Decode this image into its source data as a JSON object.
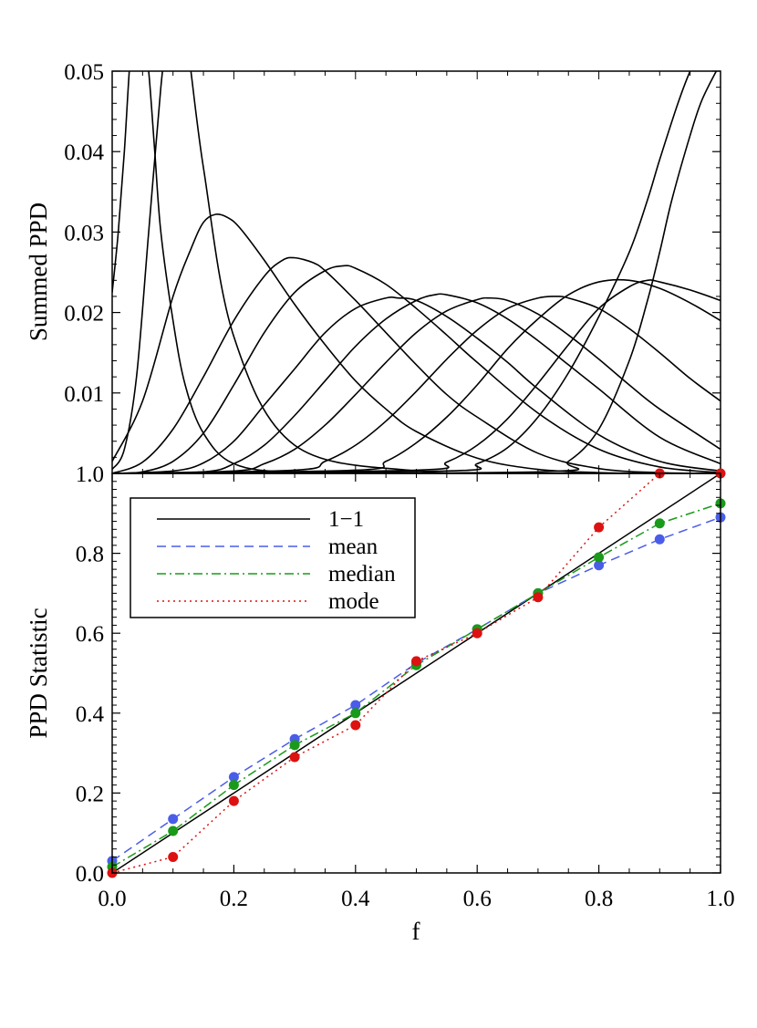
{
  "chart_data": [
    {
      "type": "line",
      "ylabel": "Summed PPD",
      "xlim": [
        0.0,
        1.0
      ],
      "ylim": [
        0.0,
        0.05
      ],
      "yticks": [
        0.01,
        0.02,
        0.03,
        0.04,
        0.05
      ],
      "ytick_labels": [
        "0.01",
        "0.02",
        "0.03",
        "0.04",
        "0.05"
      ],
      "series": [
        {
          "x": [
            0,
            0.01,
            0.02,
            0.03,
            0.04,
            0.05,
            0.06,
            0.07,
            0.08,
            0.1,
            0.12,
            0.15,
            0.2,
            0.3,
            0.5,
            0.7,
            1.0
          ],
          "values": [
            0.0225,
            0.03,
            0.04,
            0.052,
            0.058,
            0.056,
            0.05,
            0.04,
            0.03,
            0.019,
            0.011,
            0.005,
            0.0012,
            0.0001,
            0,
            0,
            0
          ]
        },
        {
          "x": [
            0,
            0.02,
            0.04,
            0.06,
            0.08,
            0.09,
            0.1,
            0.12,
            0.15,
            0.2,
            0.3,
            0.5,
            0.7,
            1.0
          ],
          "values": [
            0.0005,
            0.003,
            0.012,
            0.03,
            0.048,
            0.054,
            0.057,
            0.055,
            0.038,
            0.017,
            0.0035,
            0.0003,
            2e-05,
            0
          ]
        },
        {
          "x": [
            0,
            0.05,
            0.1,
            0.13,
            0.15,
            0.17,
            0.19,
            0.21,
            0.25,
            0.3,
            0.35,
            0.4,
            0.45,
            0.5,
            0.6,
            0.7,
            0.8,
            0.9,
            1.0
          ],
          "values": [
            0.0015,
            0.009,
            0.022,
            0.028,
            0.0312,
            0.0322,
            0.0318,
            0.0305,
            0.0265,
            0.021,
            0.016,
            0.0115,
            0.008,
            0.0052,
            0.0019,
            0.0005,
            0.0001,
            0,
            0
          ]
        },
        {
          "x": [
            0,
            0.05,
            0.1,
            0.15,
            0.2,
            0.25,
            0.28,
            0.3,
            0.33,
            0.35,
            0.4,
            0.45,
            0.5,
            0.55,
            0.6,
            0.7,
            0.8,
            0.9,
            1.0
          ],
          "values": [
            0,
            0.0014,
            0.0055,
            0.012,
            0.019,
            0.0245,
            0.0265,
            0.0268,
            0.0262,
            0.0252,
            0.0215,
            0.0175,
            0.0135,
            0.0098,
            0.007,
            0.0025,
            0.0006,
            0.0001,
            0
          ]
        },
        {
          "x": [
            0,
            0.05,
            0.1,
            0.15,
            0.2,
            0.25,
            0.3,
            0.35,
            0.38,
            0.4,
            0.45,
            0.5,
            0.55,
            0.6,
            0.7,
            0.8,
            0.9,
            1.0
          ],
          "values": [
            0,
            0.0002,
            0.0015,
            0.005,
            0.011,
            0.0175,
            0.0225,
            0.0252,
            0.0258,
            0.0255,
            0.0235,
            0.0205,
            0.0172,
            0.0138,
            0.0075,
            0.003,
            0.0008,
            0.0001
          ]
        },
        {
          "x": [
            0,
            0.1,
            0.15,
            0.2,
            0.25,
            0.3,
            0.35,
            0.4,
            0.45,
            0.47,
            0.5,
            0.55,
            0.6,
            0.65,
            0.7,
            0.8,
            0.9,
            1.0
          ],
          "values": [
            0,
            0.0003,
            0.0013,
            0.004,
            0.0085,
            0.013,
            0.0175,
            0.0205,
            0.0218,
            0.0218,
            0.0215,
            0.0195,
            0.0168,
            0.0138,
            0.0105,
            0.0048,
            0.0015,
            0.0003
          ]
        },
        {
          "x": [
            0,
            0.15,
            0.2,
            0.25,
            0.3,
            0.35,
            0.4,
            0.45,
            0.5,
            0.53,
            0.55,
            0.6,
            0.65,
            0.7,
            0.75,
            0.8,
            0.9,
            1.0
          ],
          "values": [
            0,
            0.0002,
            0.0012,
            0.0035,
            0.0072,
            0.0115,
            0.0158,
            0.0192,
            0.0215,
            0.0222,
            0.0222,
            0.0212,
            0.0192,
            0.0165,
            0.0135,
            0.0105,
            0.0045,
            0.0012
          ]
        },
        {
          "x": [
            0,
            0.2,
            0.25,
            0.3,
            0.35,
            0.4,
            0.45,
            0.5,
            0.55,
            0.6,
            0.62,
            0.65,
            0.7,
            0.75,
            0.8,
            0.85,
            0.9,
            1.0
          ],
          "values": [
            0,
            0.0003,
            0.0012,
            0.003,
            0.006,
            0.0098,
            0.0138,
            0.0175,
            0.0202,
            0.0216,
            0.0218,
            0.0215,
            0.0198,
            0.0172,
            0.0142,
            0.011,
            0.008,
            0.003
          ]
        },
        {
          "x": [
            0,
            0.3,
            0.35,
            0.4,
            0.45,
            0.5,
            0.55,
            0.6,
            0.65,
            0.7,
            0.73,
            0.75,
            0.8,
            0.85,
            0.9,
            0.95,
            1.0
          ],
          "values": [
            0,
            0.0004,
            0.0015,
            0.0035,
            0.0065,
            0.0102,
            0.0142,
            0.0178,
            0.0205,
            0.0218,
            0.022,
            0.0218,
            0.0205,
            0.018,
            0.015,
            0.0118,
            0.009
          ]
        },
        {
          "x": [
            0,
            0.4,
            0.45,
            0.5,
            0.55,
            0.6,
            0.65,
            0.7,
            0.75,
            0.8,
            0.85,
            0.9,
            0.95,
            1.0
          ],
          "values": [
            0,
            0.0004,
            0.0015,
            0.0038,
            0.007,
            0.011,
            0.0155,
            0.0192,
            0.0222,
            0.0238,
            0.024,
            0.023,
            0.0212,
            0.019
          ]
        },
        {
          "x": [
            0,
            0.5,
            0.55,
            0.6,
            0.65,
            0.7,
            0.75,
            0.8,
            0.85,
            0.88,
            0.9,
            0.95,
            1.0
          ],
          "values": [
            0,
            0.0004,
            0.0014,
            0.0035,
            0.0068,
            0.0112,
            0.016,
            0.0205,
            0.0232,
            0.024,
            0.0238,
            0.0228,
            0.0215
          ]
        },
        {
          "x": [
            0,
            0.55,
            0.6,
            0.65,
            0.7,
            0.75,
            0.8,
            0.85,
            0.88,
            0.9,
            0.93,
            0.95,
            0.97,
            1.0
          ],
          "values": [
            0,
            0.0003,
            0.0012,
            0.0032,
            0.007,
            0.0125,
            0.0195,
            0.0275,
            0.034,
            0.039,
            0.046,
            0.05,
            0.053,
            0.06
          ]
        },
        {
          "x": [
            0,
            0.7,
            0.75,
            0.8,
            0.85,
            0.88,
            0.9,
            0.92,
            0.95,
            0.97,
            1.0
          ],
          "values": [
            0,
            0.0002,
            0.0015,
            0.0055,
            0.014,
            0.0215,
            0.0275,
            0.034,
            0.042,
            0.0465,
            0.051
          ]
        }
      ]
    },
    {
      "type": "line",
      "xlabel": "f",
      "ylabel": "PPD Statistic",
      "xlim": [
        0.0,
        1.0
      ],
      "ylim": [
        0.0,
        1.0
      ],
      "xticks": [
        0.0,
        0.2,
        0.4,
        0.6,
        0.8,
        1.0
      ],
      "xtick_labels": [
        "0.0",
        "0.2",
        "0.4",
        "0.6",
        "0.8",
        "1.0"
      ],
      "yticks": [
        0.0,
        0.2,
        0.4,
        0.6,
        0.8,
        1.0
      ],
      "ytick_labels": [
        "0.0",
        "0.2",
        "0.4",
        "0.6",
        "0.8",
        "1.0"
      ],
      "legend_position": "top-left",
      "x": [
        0.0,
        0.1,
        0.2,
        0.3,
        0.4,
        0.5,
        0.6,
        0.7,
        0.8,
        0.9,
        1.0
      ],
      "series": [
        {
          "name": "1−1",
          "style": "solid",
          "color": "#000000",
          "marker": false,
          "x": [
            0.0,
            1.0
          ],
          "values": [
            0.0,
            1.0
          ]
        },
        {
          "name": "mean",
          "style": "dashed",
          "color": "#4a5de8",
          "marker": true,
          "values": [
            0.03,
            0.135,
            0.24,
            0.335,
            0.42,
            0.525,
            0.61,
            0.7,
            0.77,
            0.835,
            0.89
          ]
        },
        {
          "name": "median",
          "style": "dashdot",
          "color": "#1a9a1a",
          "marker": true,
          "values": [
            0.015,
            0.105,
            0.22,
            0.32,
            0.4,
            0.52,
            0.61,
            0.7,
            0.79,
            0.875,
            0.925
          ]
        },
        {
          "name": "mode",
          "style": "dotted",
          "color": "#dd1111",
          "marker": true,
          "values": [
            0.0,
            0.04,
            0.18,
            0.29,
            0.37,
            0.53,
            0.6,
            0.69,
            0.865,
            1.0,
            1.0
          ]
        }
      ]
    }
  ]
}
